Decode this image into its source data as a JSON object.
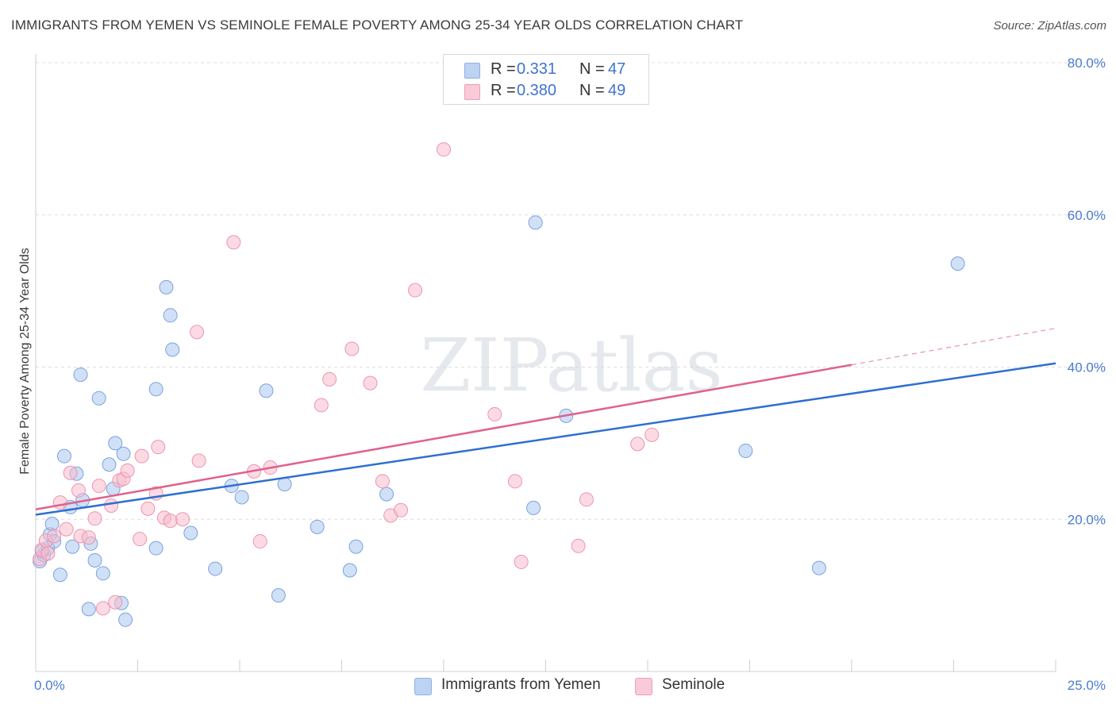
{
  "chart_data": {
    "type": "scatter",
    "title": "IMMIGRANTS FROM YEMEN VS SEMINOLE FEMALE POVERTY AMONG 25-34 YEAR OLDS CORRELATION CHART",
    "source": "Source: ZipAtlas.com",
    "watermark": "ZIPatlas",
    "xlabel": "",
    "ylabel": "Female Poverty Among 25-34 Year Olds",
    "xlim": [
      0,
      25
    ],
    "ylim": [
      0,
      80
    ],
    "x_tick_labels": [
      "0.0%",
      "25.0%"
    ],
    "y_ticks": [
      20,
      40,
      60,
      80
    ],
    "y_tick_labels": [
      "20.0%",
      "40.0%",
      "60.0%",
      "80.0%"
    ],
    "grid": true,
    "legend": {
      "position": "top-center",
      "entries": [
        {
          "r_label": "R = ",
          "r_value": "0.331",
          "n_label": "N = ",
          "n_value": "47"
        },
        {
          "r_label": "R = ",
          "r_value": "0.380",
          "n_label": "N = ",
          "n_value": "49"
        }
      ]
    },
    "series": [
      {
        "name": "Immigrants from Yemen",
        "color": "#a9c6ee",
        "stroke": "#7ba3dd",
        "trend_color": "#2e6fd0",
        "trend": {
          "x0": 0,
          "y0": 20.6,
          "x1": 25,
          "y1": 40.5
        },
        "points": [
          [
            0.1,
            14.5
          ],
          [
            0.2,
            15.3
          ],
          [
            0.3,
            16.2
          ],
          [
            0.35,
            18.0
          ],
          [
            0.4,
            19.4
          ],
          [
            0.45,
            17.1
          ],
          [
            0.6,
            12.7
          ],
          [
            0.7,
            28.3
          ],
          [
            0.85,
            21.6
          ],
          [
            0.9,
            16.4
          ],
          [
            1.0,
            26.0
          ],
          [
            1.1,
            39.0
          ],
          [
            1.15,
            22.5
          ],
          [
            1.3,
            8.2
          ],
          [
            1.35,
            16.8
          ],
          [
            1.45,
            14.6
          ],
          [
            1.55,
            35.9
          ],
          [
            1.65,
            12.9
          ],
          [
            1.8,
            27.2
          ],
          [
            1.9,
            24.0
          ],
          [
            1.95,
            30.0
          ],
          [
            2.1,
            9.0
          ],
          [
            2.15,
            28.6
          ],
          [
            2.2,
            6.8
          ],
          [
            2.95,
            37.1
          ],
          [
            2.95,
            16.2
          ],
          [
            3.2,
            50.5
          ],
          [
            3.3,
            46.8
          ],
          [
            3.35,
            42.3
          ],
          [
            3.8,
            18.2
          ],
          [
            4.4,
            13.5
          ],
          [
            4.8,
            24.4
          ],
          [
            5.05,
            22.9
          ],
          [
            5.65,
            36.9
          ],
          [
            5.95,
            10.0
          ],
          [
            6.1,
            24.6
          ],
          [
            6.9,
            19.0
          ],
          [
            7.7,
            13.3
          ],
          [
            7.85,
            16.4
          ],
          [
            8.6,
            23.3
          ],
          [
            12.2,
            21.5
          ],
          [
            12.25,
            59.0
          ],
          [
            13.0,
            33.6
          ],
          [
            17.4,
            29.0
          ],
          [
            19.2,
            13.6
          ],
          [
            22.6,
            53.6
          ],
          [
            0.15,
            15.8
          ]
        ]
      },
      {
        "name": "Seminole",
        "color": "#f7bccd",
        "stroke": "#ec95ae",
        "trend_color": "#e0628c",
        "trend": {
          "x0": 0,
          "y0": 21.3,
          "x1": 20.0,
          "y1": 40.3
        },
        "trend_dash": {
          "x0": 20.0,
          "y0": 40.3,
          "x1": 25,
          "y1": 45.1
        },
        "points": [
          [
            0.1,
            14.8
          ],
          [
            0.15,
            16.0
          ],
          [
            0.25,
            17.2
          ],
          [
            0.3,
            15.5
          ],
          [
            0.45,
            17.8
          ],
          [
            0.6,
            22.2
          ],
          [
            0.75,
            18.7
          ],
          [
            0.85,
            26.1
          ],
          [
            1.05,
            23.8
          ],
          [
            1.1,
            17.8
          ],
          [
            1.3,
            17.6
          ],
          [
            1.45,
            20.1
          ],
          [
            1.55,
            24.4
          ],
          [
            1.65,
            8.3
          ],
          [
            1.85,
            21.8
          ],
          [
            1.95,
            9.1
          ],
          [
            2.05,
            25.1
          ],
          [
            2.15,
            25.3
          ],
          [
            2.25,
            26.4
          ],
          [
            2.55,
            17.4
          ],
          [
            2.6,
            28.3
          ],
          [
            2.75,
            21.4
          ],
          [
            2.95,
            23.4
          ],
          [
            3.0,
            29.5
          ],
          [
            3.15,
            20.2
          ],
          [
            3.3,
            19.8
          ],
          [
            3.6,
            20.0
          ],
          [
            3.95,
            44.6
          ],
          [
            4.0,
            27.7
          ],
          [
            4.85,
            56.4
          ],
          [
            5.35,
            26.3
          ],
          [
            5.5,
            17.1
          ],
          [
            5.75,
            26.8
          ],
          [
            7.0,
            35.0
          ],
          [
            7.2,
            38.4
          ],
          [
            7.75,
            42.4
          ],
          [
            8.2,
            37.9
          ],
          [
            8.5,
            25.0
          ],
          [
            8.7,
            20.5
          ],
          [
            8.95,
            21.2
          ],
          [
            9.3,
            50.1
          ],
          [
            10.0,
            68.6
          ],
          [
            11.25,
            33.8
          ],
          [
            11.75,
            25.0
          ],
          [
            11.9,
            14.4
          ],
          [
            13.3,
            16.5
          ],
          [
            13.5,
            22.6
          ],
          [
            14.75,
            29.9
          ],
          [
            15.1,
            31.1
          ]
        ]
      }
    ]
  }
}
